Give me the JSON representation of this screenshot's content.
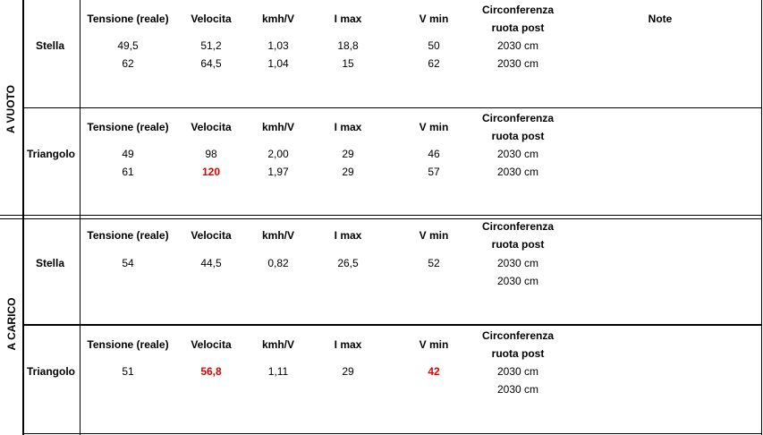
{
  "headers": {
    "tensione": "Tensione (reale)",
    "velocita": "Velocita",
    "kmhv": "kmh/V",
    "imax": "I max",
    "vmin": "V min",
    "circ_line1": "Circonferenza",
    "circ_line2": "ruota post",
    "note": "Note"
  },
  "groups": {
    "vuoto": "A VUOTO",
    "carico": "A CARICO"
  },
  "sections": [
    {
      "label": "Stella",
      "rows": [
        {
          "tensione": "49,5",
          "velocita": "51,2",
          "kmhv": "1,03",
          "imax": "18,8",
          "vmin": "50",
          "circ": "2030 cm"
        },
        {
          "tensione": "62",
          "velocita": "64,5",
          "kmhv": "1,04",
          "imax": "15",
          "vmin": "62",
          "circ": "2030 cm"
        }
      ]
    },
    {
      "label": "Triangolo",
      "rows": [
        {
          "tensione": "49",
          "velocita": "98",
          "kmhv": "2,00",
          "imax": "29",
          "vmin": "46",
          "circ": "2030 cm"
        },
        {
          "tensione": "61",
          "velocita": "120",
          "kmhv": "1,97",
          "imax": "29",
          "vmin": "57",
          "circ": "2030 cm"
        }
      ]
    },
    {
      "label": "Stella",
      "rows": [
        {
          "tensione": "54",
          "velocita": "44,5",
          "kmhv": "0,82",
          "imax": "26,5",
          "vmin": "52",
          "circ": "2030 cm"
        },
        {
          "circ": "2030 cm"
        }
      ]
    },
    {
      "label": "Triangolo",
      "rows": [
        {
          "tensione": "51",
          "velocita": "56,8",
          "kmhv": "1,11",
          "imax": "29",
          "vmin": "42",
          "circ": "2030 cm"
        },
        {
          "circ": "2030 cm"
        }
      ]
    }
  ],
  "colors": {
    "highlight": "#e00000",
    "grid": "#000000"
  }
}
